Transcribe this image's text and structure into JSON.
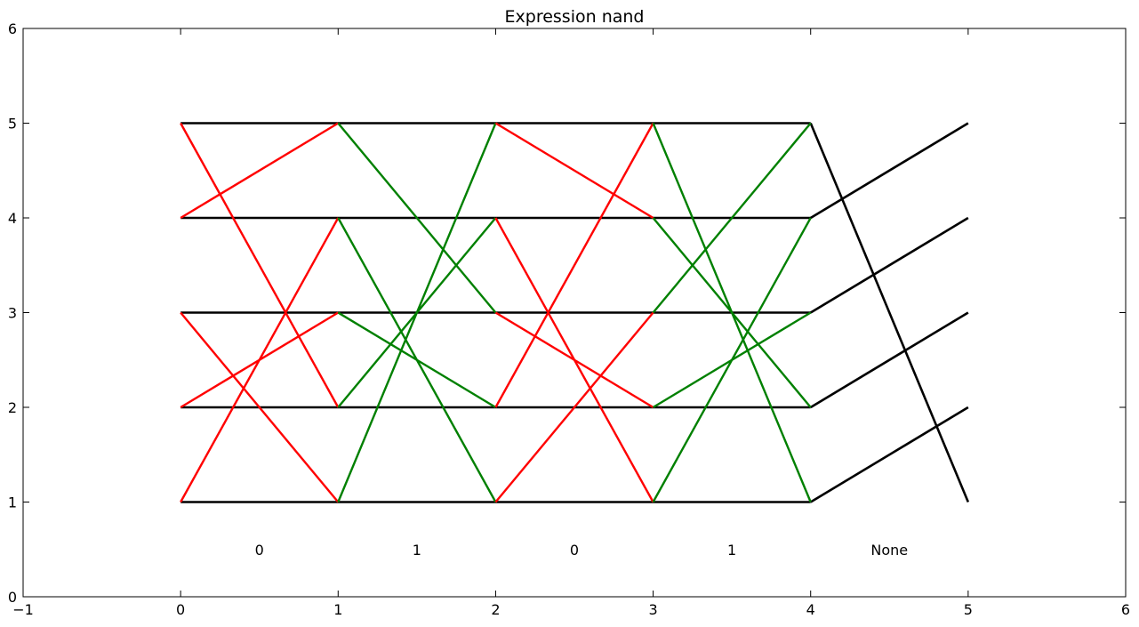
{
  "chart_data": {
    "type": "line",
    "title": "Expression nand",
    "xlabel": "",
    "ylabel": "",
    "xlim": [
      -1,
      6
    ],
    "ylim": [
      0,
      6
    ],
    "x_ticks": [
      "−1",
      "0",
      "1",
      "2",
      "3",
      "4",
      "5",
      "6"
    ],
    "y_ticks": [
      "0",
      "1",
      "2",
      "3",
      "4",
      "5",
      "6"
    ],
    "grid": false,
    "colors": {
      "black": "#000000",
      "red": "#ff0000",
      "green": "#008000"
    },
    "segment_labels": [
      {
        "x": 0.5,
        "y": 0.5,
        "text": "0"
      },
      {
        "x": 1.5,
        "y": 0.5,
        "text": "1"
      },
      {
        "x": 2.5,
        "y": 0.5,
        "text": "0"
      },
      {
        "x": 3.5,
        "y": 0.5,
        "text": "1"
      },
      {
        "x": 4.5,
        "y": 0.5,
        "text": "None"
      }
    ],
    "lines": [
      {
        "color": "black",
        "points": [
          [
            0,
            5
          ],
          [
            4,
            5
          ]
        ]
      },
      {
        "color": "black",
        "points": [
          [
            0,
            4
          ],
          [
            4,
            4
          ]
        ]
      },
      {
        "color": "black",
        "points": [
          [
            0,
            3
          ],
          [
            4,
            3
          ]
        ]
      },
      {
        "color": "black",
        "points": [
          [
            0,
            2
          ],
          [
            4,
            2
          ]
        ]
      },
      {
        "color": "black",
        "points": [
          [
            0,
            1
          ],
          [
            4,
            1
          ]
        ]
      },
      {
        "color": "black",
        "points": [
          [
            4,
            5
          ],
          [
            5,
            1
          ]
        ]
      },
      {
        "color": "black",
        "points": [
          [
            4,
            4
          ],
          [
            5,
            5
          ]
        ]
      },
      {
        "color": "black",
        "points": [
          [
            4,
            3
          ],
          [
            5,
            4
          ]
        ]
      },
      {
        "color": "black",
        "points": [
          [
            4,
            2
          ],
          [
            5,
            3
          ]
        ]
      },
      {
        "color": "black",
        "points": [
          [
            4,
            1
          ],
          [
            5,
            2
          ]
        ]
      },
      {
        "color": "red",
        "points": [
          [
            0,
            5
          ],
          [
            1,
            2
          ]
        ]
      },
      {
        "color": "red",
        "points": [
          [
            0,
            4
          ],
          [
            1,
            5
          ]
        ]
      },
      {
        "color": "red",
        "points": [
          [
            0,
            3
          ],
          [
            1,
            1
          ]
        ]
      },
      {
        "color": "red",
        "points": [
          [
            0,
            2
          ],
          [
            1,
            3
          ]
        ]
      },
      {
        "color": "red",
        "points": [
          [
            0,
            1
          ],
          [
            1,
            4
          ]
        ]
      },
      {
        "color": "green",
        "points": [
          [
            1,
            5
          ],
          [
            2,
            3
          ]
        ]
      },
      {
        "color": "green",
        "points": [
          [
            1,
            4
          ],
          [
            2,
            1
          ]
        ]
      },
      {
        "color": "green",
        "points": [
          [
            1,
            3
          ],
          [
            2,
            2
          ]
        ]
      },
      {
        "color": "green",
        "points": [
          [
            1,
            2
          ],
          [
            2,
            4
          ]
        ]
      },
      {
        "color": "green",
        "points": [
          [
            1,
            1
          ],
          [
            2,
            5
          ]
        ]
      },
      {
        "color": "red",
        "points": [
          [
            2,
            5
          ],
          [
            3,
            4
          ]
        ]
      },
      {
        "color": "red",
        "points": [
          [
            2,
            4
          ],
          [
            3,
            1
          ]
        ]
      },
      {
        "color": "red",
        "points": [
          [
            2,
            3
          ],
          [
            3,
            2
          ]
        ]
      },
      {
        "color": "red",
        "points": [
          [
            2,
            2
          ],
          [
            3,
            5
          ]
        ]
      },
      {
        "color": "red",
        "points": [
          [
            2,
            1
          ],
          [
            3,
            3
          ]
        ]
      },
      {
        "color": "green",
        "points": [
          [
            3,
            5
          ],
          [
            4,
            1
          ]
        ]
      },
      {
        "color": "green",
        "points": [
          [
            3,
            4
          ],
          [
            4,
            2
          ]
        ]
      },
      {
        "color": "green",
        "points": [
          [
            3,
            3
          ],
          [
            4,
            5
          ]
        ]
      },
      {
        "color": "green",
        "points": [
          [
            3,
            2
          ],
          [
            4,
            3
          ]
        ]
      },
      {
        "color": "green",
        "points": [
          [
            3,
            1
          ],
          [
            4,
            4
          ]
        ]
      }
    ]
  }
}
